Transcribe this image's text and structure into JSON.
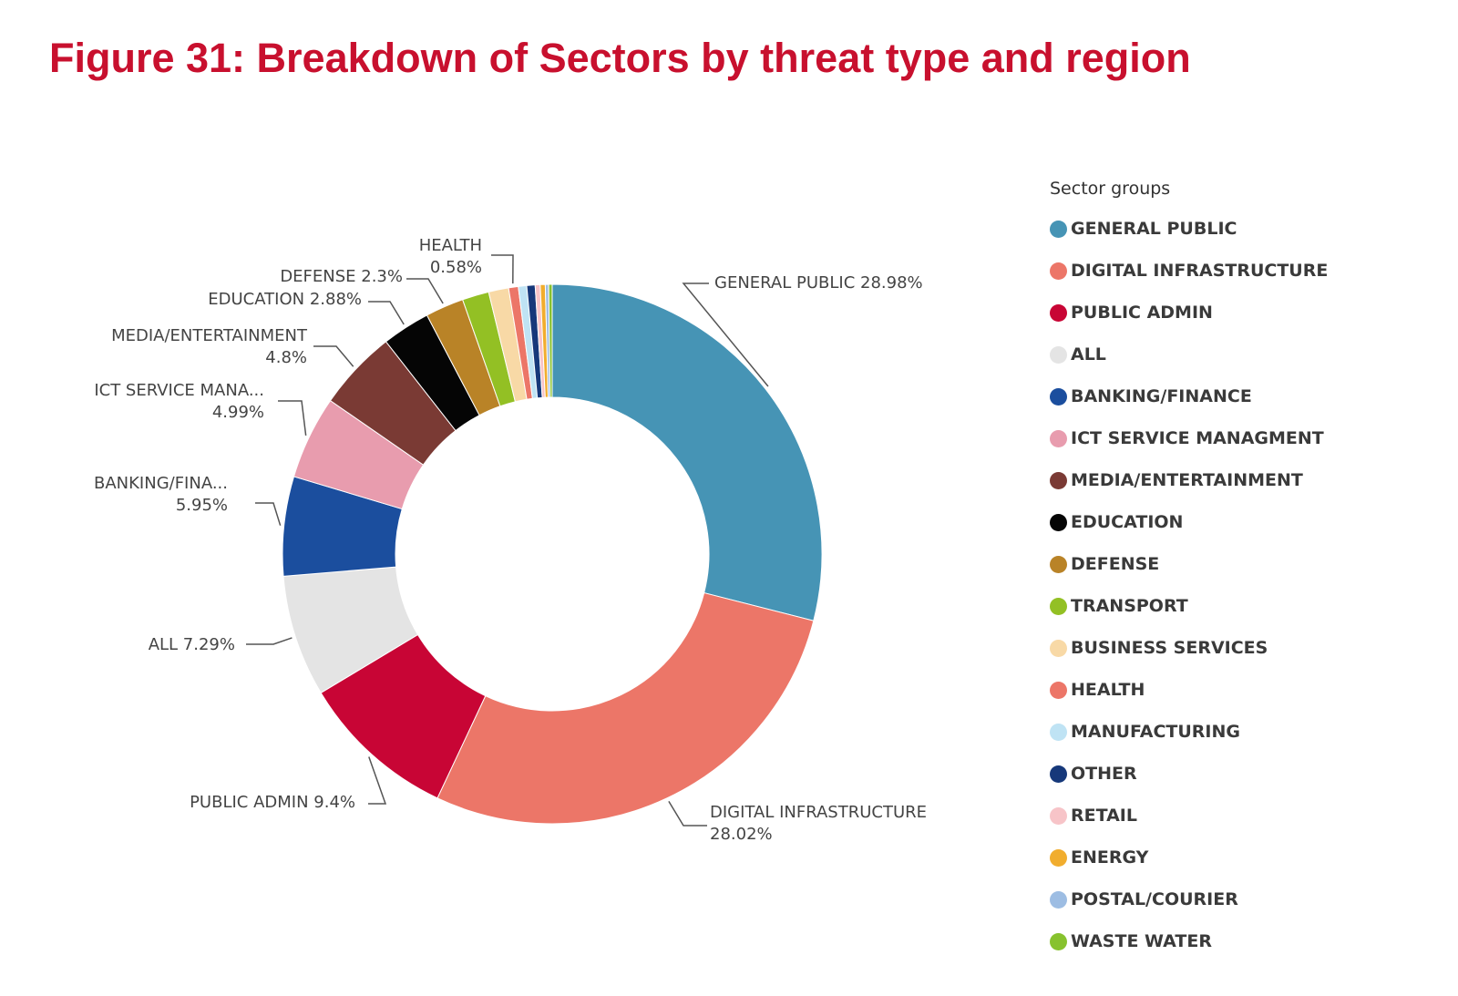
{
  "figure": {
    "title": "Figure 31: Breakdown of Sectors by threat type and region"
  },
  "chart_data": {
    "type": "pie",
    "donut": true,
    "legend_title": "Sector groups",
    "legend_position": "right",
    "slices": [
      {
        "name": "GENERAL PUBLIC",
        "value": 28.98,
        "label": [
          "GENERAL PUBLIC 28.98%"
        ],
        "color": "#4694b5"
      },
      {
        "name": "DIGITAL INFRASTRUCTURE",
        "value": 28.02,
        "label": [
          "DIGITAL INFRASTRUCTURE",
          "28.02%"
        ],
        "color": "#ec7668"
      },
      {
        "name": "PUBLIC ADMIN",
        "value": 9.4,
        "label": [
          "PUBLIC ADMIN 9.4%"
        ],
        "color": "#c80535"
      },
      {
        "name": "ALL",
        "value": 7.29,
        "label": [
          "ALL 7.29%"
        ],
        "color": "#e4e4e4"
      },
      {
        "name": "BANKING/FINANCE",
        "value": 5.95,
        "label": [
          "BANKING/FINA...",
          "5.95%"
        ],
        "color": "#1b4e9e"
      },
      {
        "name": "ICT SERVICE MANAGMENT",
        "value": 4.99,
        "label": [
          "ICT SERVICE MANA...",
          "4.99%"
        ],
        "color": "#e89cae"
      },
      {
        "name": "MEDIA/ENTERTAINMENT",
        "value": 4.8,
        "label": [
          "MEDIA/ENTERTAINMENT",
          "4.8%"
        ],
        "color": "#7a3a34"
      },
      {
        "name": "EDUCATION",
        "value": 2.88,
        "label": [
          "EDUCATION 2.88%"
        ],
        "color": "#050505"
      },
      {
        "name": "DEFENSE",
        "value": 2.3,
        "label": [
          "DEFENSE 2.3%"
        ],
        "color": "#b98327"
      },
      {
        "name": "TRANSPORT",
        "value": 1.6,
        "label": null,
        "color": "#93c024"
      },
      {
        "name": "BUSINESS SERVICES",
        "value": 1.2,
        "label": null,
        "color": "#f8d9a6"
      },
      {
        "name": "HEALTH",
        "value": 0.58,
        "label": [
          "HEALTH",
          "0.58%"
        ],
        "color": "#ec7668"
      },
      {
        "name": "MANUFACTURING",
        "value": 0.5,
        "label": null,
        "color": "#bfe3f4"
      },
      {
        "name": "OTHER",
        "value": 0.5,
        "label": null,
        "color": "#16387a"
      },
      {
        "name": "RETAIL",
        "value": 0.3,
        "label": null,
        "color": "#f7c4c8"
      },
      {
        "name": "ENERGY",
        "value": 0.3,
        "label": null,
        "color": "#f1ad2e"
      },
      {
        "name": "POSTAL/COURIER",
        "value": 0.2,
        "label": null,
        "color": "#9dbde3"
      },
      {
        "name": "WASTE WATER",
        "value": 0.21,
        "label": null,
        "color": "#87c22e"
      }
    ]
  }
}
